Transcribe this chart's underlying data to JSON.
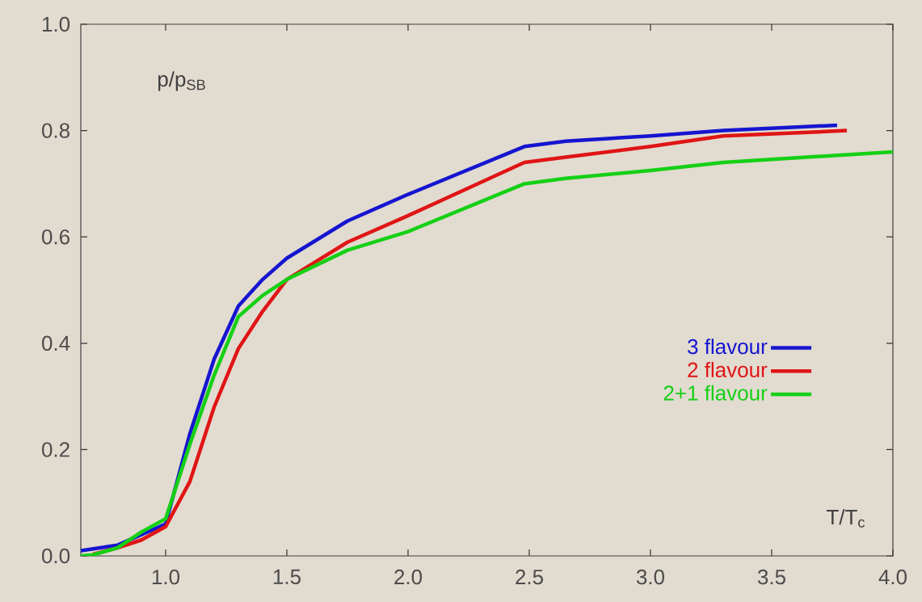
{
  "chart_data": {
    "type": "line",
    "xlabel": "T/T$_{c}$",
    "ylabel": "p/p$_{SB}$",
    "xlim": [
      0.65,
      4.0
    ],
    "ylim": [
      0.0,
      1.0
    ],
    "xticks": [
      {
        "value": 1.0,
        "label": "1.0"
      },
      {
        "value": 1.5,
        "label": "1.5"
      },
      {
        "value": 2.0,
        "label": "2.0"
      },
      {
        "value": 2.5,
        "label": "2.5"
      },
      {
        "value": 3.0,
        "label": "3.0"
      },
      {
        "value": 3.5,
        "label": "3.5"
      },
      {
        "value": 4.0,
        "label": "4.0"
      }
    ],
    "yticks": [
      {
        "value": 0.0,
        "label": "0.0"
      },
      {
        "value": 0.2,
        "label": "0.2"
      },
      {
        "value": 0.4,
        "label": "0.4"
      },
      {
        "value": 0.6,
        "label": "0.6"
      },
      {
        "value": 0.8,
        "label": "0.8"
      },
      {
        "value": 1.0,
        "label": "1.0"
      }
    ],
    "legend": "right",
    "marker": "none",
    "line_style": "solid",
    "grid": false,
    "series": [
      {
        "name": "3 flavour",
        "color": "#1515d0",
        "x": [
          0.65,
          0.8,
          0.9,
          1.0,
          1.1,
          1.2,
          1.3,
          1.4,
          1.5,
          1.75,
          2.0,
          2.48,
          2.65,
          3.0,
          3.3,
          3.77
        ],
        "values": [
          0.01,
          0.02,
          0.04,
          0.06,
          0.23,
          0.37,
          0.47,
          0.52,
          0.56,
          0.63,
          0.68,
          0.77,
          0.78,
          0.79,
          0.8,
          0.81
        ]
      },
      {
        "name": "2 flavour",
        "color": "#e01515",
        "x": [
          0.7,
          0.8,
          0.9,
          1.0,
          1.1,
          1.2,
          1.3,
          1.4,
          1.5,
          1.75,
          2.0,
          2.48,
          2.65,
          3.0,
          3.3,
          3.81
        ],
        "values": [
          0.003,
          0.015,
          0.03,
          0.055,
          0.14,
          0.28,
          0.39,
          0.46,
          0.52,
          0.59,
          0.64,
          0.74,
          0.75,
          0.77,
          0.79,
          0.8
        ]
      },
      {
        "name": "2+1 flavour",
        "color": "#15d015",
        "x": [
          0.65,
          0.7,
          0.8,
          0.9,
          1.0,
          1.1,
          1.2,
          1.3,
          1.4,
          1.5,
          1.75,
          2.0,
          2.48,
          2.65,
          3.0,
          3.3,
          4.0
        ],
        "values": [
          0.0,
          0.002,
          0.015,
          0.045,
          0.07,
          0.21,
          0.34,
          0.45,
          0.49,
          0.52,
          0.575,
          0.61,
          0.7,
          0.71,
          0.725,
          0.74,
          0.76
        ]
      }
    ]
  }
}
